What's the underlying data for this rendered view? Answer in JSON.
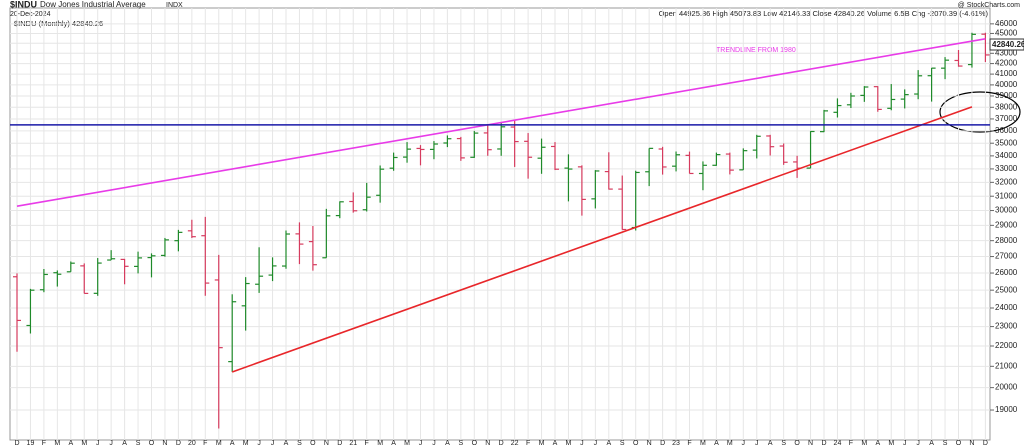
{
  "chart_data": {
    "type": "ohlc",
    "header": {
      "symbol": "$INDU",
      "name": "Dow Jones Industrial Average",
      "exchange": "INDX",
      "date": "20-Dec-2024",
      "quote": "Open 44925.86  High 45073.83  Low 42146.33  Close 42840.26  Volume 6.5B  Chg -2070.39 (-4.61%)",
      "source": "@ StockCharts.com",
      "legend": "$INDU (Monthly) 42840.26",
      "last": "42840.26"
    },
    "annotation": "TRENDLINE FROM 1980",
    "categories": [
      "D",
      "19",
      "F",
      "M",
      "A",
      "M",
      "J",
      "J",
      "A",
      "S",
      "O",
      "N",
      "D",
      "20",
      "F",
      "M",
      "A",
      "M",
      "J",
      "J",
      "A",
      "S",
      "O",
      "N",
      "D",
      "21",
      "F",
      "M",
      "A",
      "M",
      "J",
      "J",
      "A",
      "S",
      "O",
      "N",
      "D",
      "22",
      "F",
      "M",
      "A",
      "M",
      "J",
      "J",
      "A",
      "S",
      "O",
      "N",
      "D",
      "23",
      "F",
      "M",
      "A",
      "M",
      "J",
      "J",
      "A",
      "S",
      "O",
      "N",
      "D",
      "24",
      "F",
      "M",
      "A",
      "M",
      "J",
      "J",
      "A",
      "S",
      "O",
      "N",
      "D"
    ],
    "open": [
      25779,
      23058,
      25025,
      26019,
      26075,
      26430,
      24820,
      26786,
      26824,
      26398,
      26937,
      27070,
      28000,
      28639,
      28320,
      25591,
      21227,
      24120,
      25342,
      25879,
      26420,
      28439,
      27941,
      26925,
      29656,
      30627,
      30054,
      31065,
      33055,
      33904,
      34584,
      34507,
      35018,
      35374,
      33890,
      35834,
      34541,
      36321,
      35151,
      33821,
      34740,
      33062,
      33156,
      30814,
      32798,
      31510,
      28856,
      32785,
      34540,
      33207,
      34039,
      32656,
      33275,
      34142,
      32929,
      34451,
      35585,
      34775,
      33531,
      33062,
      35940,
      37566,
      38218,
      39049,
      39838,
      37911,
      38720,
      39172,
      40851,
      41560,
      42300,
      41905,
      44925
    ],
    "high": [
      25980,
      25075,
      26241,
      26155,
      26696,
      26580,
      26908,
      27399,
      26856,
      27306,
      27197,
      28175,
      28702,
      29374,
      29568,
      27102,
      24765,
      25758,
      27580,
      26950,
      28659,
      29199,
      28958,
      30116,
      30637,
      31272,
      31961,
      33259,
      34256,
      35091,
      34849,
      35171,
      35631,
      35510,
      36000,
      36566,
      36680,
      36952,
      35824,
      35372,
      35092,
      34118,
      33272,
      32910,
      34281,
      32504,
      32862,
      34590,
      34712,
      34342,
      34335,
      33572,
      34257,
      34257,
      34589,
      35679,
      35679,
      34979,
      34007,
      35980,
      37778,
      38783,
      39282,
      39889,
      39882,
      40077,
      39590,
      41376,
      41585,
      42628,
      43325,
      45073,
      45073
    ],
    "low": [
      21713,
      22638,
      24883,
      25208,
      26075,
      24815,
      24680,
      26786,
      25339,
      25979,
      25743,
      26990,
      27325,
      28170,
      24681,
      18214,
      20735,
      22790,
      24844,
      25524,
      26256,
      26537,
      26143,
      26925,
      29481,
      29856,
      29936,
      30547,
      32860,
      33473,
      33271,
      33741,
      34689,
      33614,
      33842,
      34007,
      34006,
      33150,
      32272,
      32632,
      32913,
      30636,
      29653,
      30144,
      31477,
      28715,
      28661,
      31727,
      32573,
      32812,
      32655,
      31429,
      33235,
      32586,
      32925,
      33801,
      34030,
      33307,
      32327,
      33050,
      35899,
      37123,
      37939,
      38476,
      37612,
      37742,
      37901,
      38709,
      38499,
      40530,
      41700,
      41615,
      42146
    ],
    "close": [
      23327,
      24999,
      25916,
      25929,
      26593,
      24815,
      26600,
      26864,
      26403,
      26917,
      27046,
      28051,
      28538,
      28256,
      25409,
      21917,
      24346,
      25383,
      25813,
      26428,
      28430,
      27782,
      26501,
      29638,
      30606,
      29983,
      30932,
      32981,
      33874,
      34529,
      34503,
      34935,
      35361,
      33844,
      35820,
      34484,
      36338,
      35132,
      33893,
      34678,
      32977,
      32990,
      30775,
      32845,
      31510,
      28726,
      32733,
      34590,
      33147,
      34086,
      32657,
      33274,
      34098,
      32908,
      34408,
      35560,
      34722,
      33508,
      33053,
      35951,
      37690,
      38150,
      38996,
      39807,
      37816,
      38686,
      39119,
      40842,
      41563,
      42330,
      41763,
      44910,
      42840
    ],
    "up_color": "#1f8a2a",
    "down_color": "#d63b5e",
    "lines": [
      {
        "color": "#e83be8",
        "x": [
          0,
          72
        ],
        "values": [
          30300,
          44450
        ]
      },
      {
        "color": "#e8262a",
        "x": [
          16,
          71
        ],
        "values": [
          20730,
          38040
        ]
      },
      {
        "color": "#1a1aa8",
        "x": [
          0,
          72
        ],
        "values": [
          36500,
          36500
        ]
      }
    ],
    "ylim": [
      17740,
      47700
    ],
    "log_y": true,
    "grid": true,
    "yticks": [
      19000,
      20000,
      21000,
      22000,
      23000,
      24000,
      25000,
      26000,
      27000,
      28000,
      29000,
      30000,
      31000,
      32000,
      33000,
      34000,
      35000,
      36000,
      37000,
      38000,
      39000,
      40000,
      41000,
      42000,
      43000,
      44000,
      45000,
      46000
    ]
  }
}
